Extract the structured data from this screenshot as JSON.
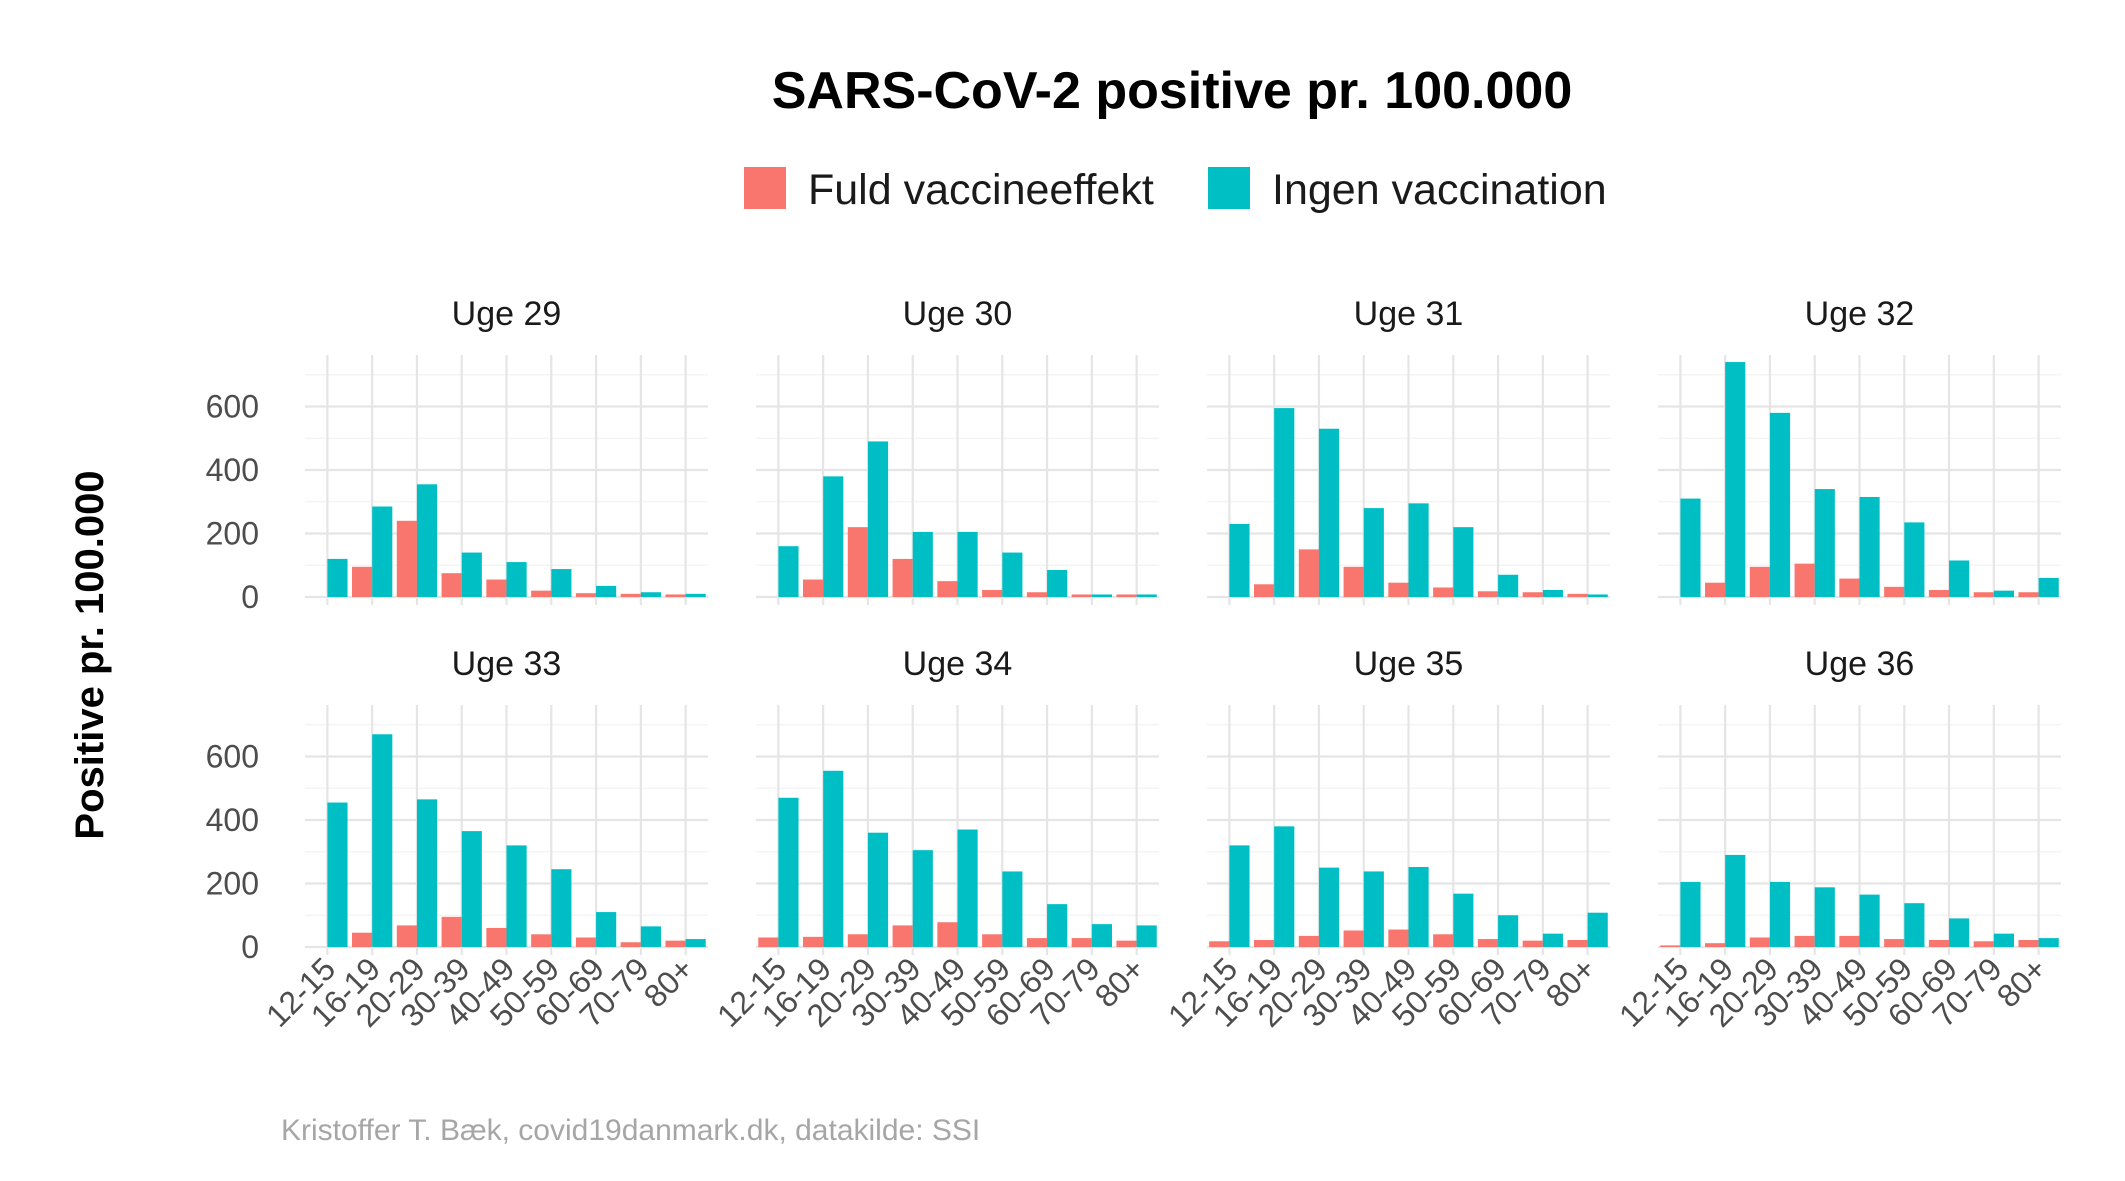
{
  "chart_data": {
    "type": "bar",
    "title": "SARS-CoV-2 positive pr. 100.000",
    "ylabel": "Positive pr. 100.000",
    "xlabel": "",
    "caption": "Kristoffer T. Bæk, covid19danmark.dk, datakilde: SSI",
    "legend_position": "top",
    "grid": true,
    "ylim": [
      0,
      750
    ],
    "yticks": [
      0,
      200,
      400,
      600
    ],
    "categories": [
      "12-15",
      "16-19",
      "20-29",
      "30-39",
      "40-49",
      "50-59",
      "60-69",
      "70-79",
      "80+"
    ],
    "series_names": [
      "Fuld vaccineeffekt",
      "Ingen vaccination"
    ],
    "colors": {
      "Fuld vaccineeffekt": "#F8766D",
      "Ingen vaccination": "#00BFC4"
    },
    "facets": [
      {
        "label": "Uge 29",
        "series": [
          {
            "name": "Fuld vaccineeffekt",
            "values": [
              0,
              95,
              240,
              75,
              55,
              20,
              12,
              10,
              8
            ]
          },
          {
            "name": "Ingen vaccination",
            "values": [
              120,
              285,
              355,
              140,
              110,
              88,
              35,
              15,
              10
            ]
          }
        ]
      },
      {
        "label": "Uge 30",
        "series": [
          {
            "name": "Fuld vaccineeffekt",
            "values": [
              0,
              55,
              220,
              120,
              50,
              22,
              15,
              8,
              8
            ]
          },
          {
            "name": "Ingen vaccination",
            "values": [
              160,
              380,
              490,
              205,
              205,
              140,
              85,
              8,
              8
            ]
          }
        ]
      },
      {
        "label": "Uge 31",
        "series": [
          {
            "name": "Fuld vaccineeffekt",
            "values": [
              0,
              40,
              150,
              95,
              45,
              30,
              18,
              15,
              10
            ]
          },
          {
            "name": "Ingen vaccination",
            "values": [
              230,
              595,
              530,
              280,
              295,
              220,
              70,
              22,
              8
            ]
          }
        ]
      },
      {
        "label": "Uge 32",
        "series": [
          {
            "name": "Fuld vaccineeffekt",
            "values": [
              0,
              45,
              95,
              105,
              58,
              32,
              22,
              15,
              15
            ]
          },
          {
            "name": "Ingen vaccination",
            "values": [
              310,
              740,
              580,
              340,
              315,
              235,
              115,
              20,
              60
            ]
          }
        ]
      },
      {
        "label": "Uge 33",
        "series": [
          {
            "name": "Fuld vaccineeffekt",
            "values": [
              0,
              45,
              68,
              95,
              60,
              40,
              30,
              15,
              20
            ]
          },
          {
            "name": "Ingen vaccination",
            "values": [
              455,
              670,
              465,
              365,
              320,
              245,
              110,
              65,
              25
            ]
          }
        ]
      },
      {
        "label": "Uge 34",
        "series": [
          {
            "name": "Fuld vaccineeffekt",
            "values": [
              30,
              32,
              40,
              68,
              78,
              40,
              28,
              28,
              20
            ]
          },
          {
            "name": "Ingen vaccination",
            "values": [
              470,
              555,
              360,
              305,
              370,
              238,
              135,
              72,
              68
            ]
          }
        ]
      },
      {
        "label": "Uge 35",
        "series": [
          {
            "name": "Fuld vaccineeffekt",
            "values": [
              18,
              22,
              35,
              52,
              55,
              40,
              25,
              20,
              22
            ]
          },
          {
            "name": "Ingen vaccination",
            "values": [
              320,
              380,
              250,
              238,
              252,
              168,
              100,
              42,
              108
            ]
          }
        ]
      },
      {
        "label": "Uge 36",
        "series": [
          {
            "name": "Fuld vaccineeffekt",
            "values": [
              5,
              12,
              30,
              35,
              35,
              25,
              22,
              18,
              22
            ]
          },
          {
            "name": "Ingen vaccination",
            "values": [
              205,
              290,
              205,
              188,
              165,
              138,
              90,
              42,
              28
            ]
          }
        ]
      }
    ]
  }
}
